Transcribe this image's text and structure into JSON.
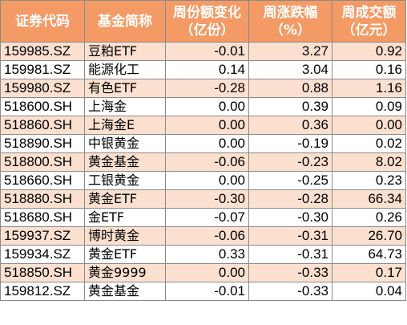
{
  "colors": {
    "header_bg": "#f49a65",
    "stripe_bg": "#fbe0d0",
    "plain_bg": "#ffffff",
    "border": "#8a8a8a"
  },
  "headers": [
    {
      "line1": "证券代码",
      "line2": ""
    },
    {
      "line1": "基金简称",
      "line2": ""
    },
    {
      "line1": "周份额变化",
      "line2": "（亿份）"
    },
    {
      "line1": "周涨跌幅",
      "line2": "（%）"
    },
    {
      "line1": "周成交额",
      "line2": "（亿元）"
    }
  ],
  "rows": [
    {
      "code": "159985.SZ",
      "name": "豆粕ETF",
      "share_change": "-0.01",
      "pct_change": "3.27",
      "turnover": "0.92"
    },
    {
      "code": "159981.SZ",
      "name": "能源化工",
      "share_change": "0.14",
      "pct_change": "3.04",
      "turnover": "0.16"
    },
    {
      "code": "159980.SZ",
      "name": "有色ETF",
      "share_change": "-0.28",
      "pct_change": "0.88",
      "turnover": "1.16"
    },
    {
      "code": "518600.SH",
      "name": "上海金",
      "share_change": "0.00",
      "pct_change": "0.39",
      "turnover": "0.09"
    },
    {
      "code": "518860.SH",
      "name": "上海金E",
      "share_change": "0.00",
      "pct_change": "0.36",
      "turnover": "0.00"
    },
    {
      "code": "518890.SH",
      "name": "中银黄金",
      "share_change": "0.00",
      "pct_change": "-0.19",
      "turnover": "0.02"
    },
    {
      "code": "518800.SH",
      "name": "黄金基金",
      "share_change": "-0.06",
      "pct_change": "-0.23",
      "turnover": "8.02"
    },
    {
      "code": "518660.SH",
      "name": "工银黄金",
      "share_change": "0.00",
      "pct_change": "-0.25",
      "turnover": "0.23"
    },
    {
      "code": "518880.SH",
      "name": "黄金ETF",
      "share_change": "-0.30",
      "pct_change": "-0.28",
      "turnover": "66.34"
    },
    {
      "code": "518680.SH",
      "name": "金ETF",
      "share_change": "-0.07",
      "pct_change": "-0.30",
      "turnover": "0.26"
    },
    {
      "code": "159937.SZ",
      "name": "博时黄金",
      "share_change": "-0.06",
      "pct_change": "-0.31",
      "turnover": "26.70"
    },
    {
      "code": "159934.SZ",
      "name": "黄金ETF",
      "share_change": "0.33",
      "pct_change": "-0.31",
      "turnover": "64.73"
    },
    {
      "code": "518850.SH",
      "name": "黄金9999",
      "share_change": "0.00",
      "pct_change": "-0.33",
      "turnover": "0.17"
    },
    {
      "code": "159812.SZ",
      "name": "黄金基金",
      "share_change": "-0.01",
      "pct_change": "-0.33",
      "turnover": "0.04"
    }
  ]
}
